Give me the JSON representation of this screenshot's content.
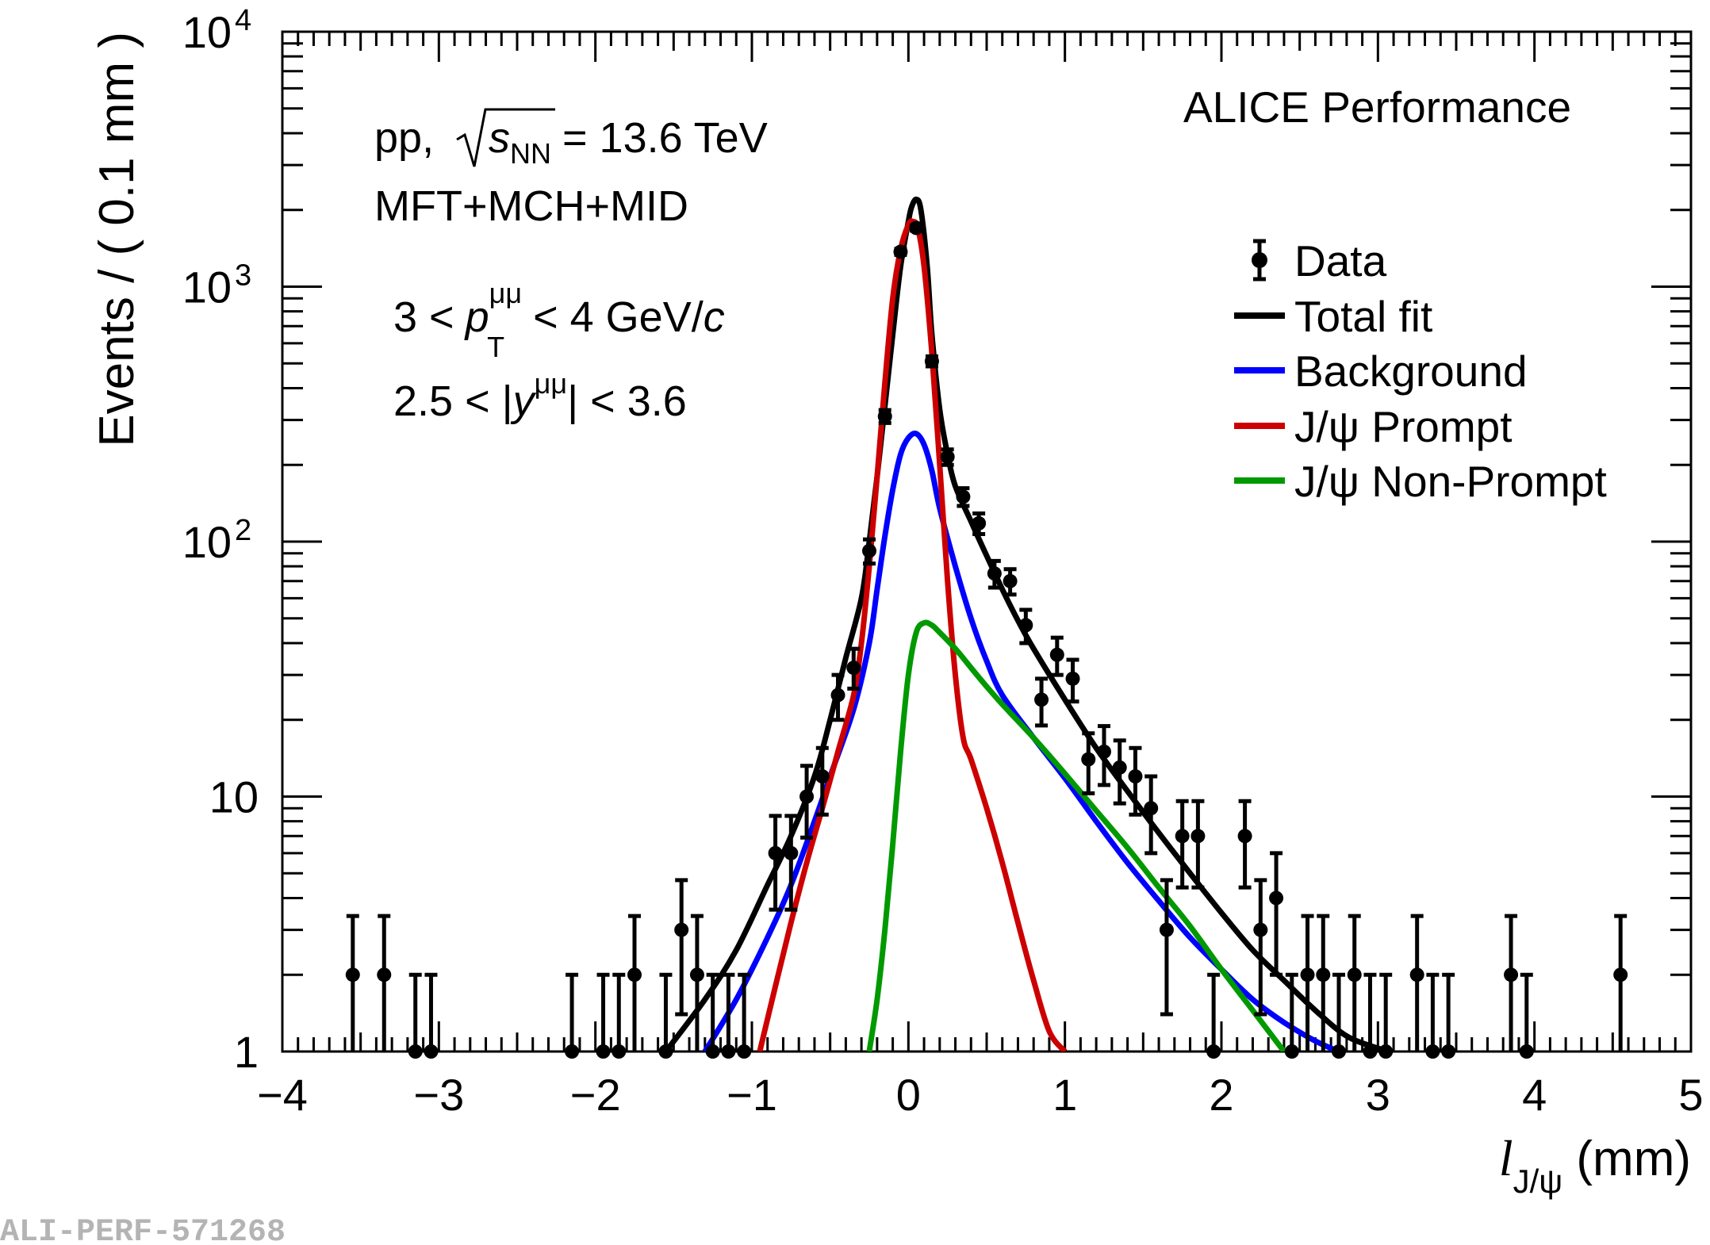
{
  "chart_data": {
    "type": "scatter",
    "title": "ALICE Performance",
    "xlabel_main": "l",
    "xlabel_sub": "J/ψ",
    "xlabel_unit": " (mm)",
    "ylabel": "Events / ( 0.1 mm )",
    "xlim": [
      -4,
      5
    ],
    "ylim": [
      1,
      10000
    ],
    "yscale": "log",
    "x_ticks": [
      "−4",
      "−3",
      "−2",
      "−1",
      "0",
      "1",
      "2",
      "3",
      "4",
      "5"
    ],
    "y_ticks": [
      {
        "value": 1,
        "base": "1",
        "exp": ""
      },
      {
        "value": 10,
        "base": "10",
        "exp": ""
      },
      {
        "value": 100,
        "base": "10",
        "exp": "2"
      },
      {
        "value": 1000,
        "base": "10",
        "exp": "3"
      },
      {
        "value": 10000,
        "base": "10",
        "exp": "4"
      }
    ],
    "annotations": {
      "system": "pp,",
      "energy_var": "s",
      "energy_sub": "NN",
      "energy_val": "= 13.6 TeV",
      "detectors": "MFT+MCH+MID",
      "pt_low": "3 <",
      "pt_var": "p",
      "pt_sub": "T",
      "pt_sup": "μμ",
      "pt_high": "< 4 GeV/",
      "pt_unit": "c",
      "y_low": "2.5 < |",
      "y_var": "y",
      "y_sup": "μμ",
      "y_high": "| < 3.6"
    },
    "legend_position": "top-right",
    "legend": [
      {
        "label": "Data",
        "type": "marker",
        "color": "#000000"
      },
      {
        "label": "Total fit",
        "type": "line",
        "color": "#000000"
      },
      {
        "label": "Background",
        "type": "line",
        "color": "#0000ff"
      },
      {
        "label": "J/ψ Prompt",
        "type": "line",
        "color": "#cc0000"
      },
      {
        "label": "J/ψ Non-Prompt",
        "type": "line",
        "color": "#009900"
      }
    ],
    "data_points": [
      {
        "x": -3.55,
        "y": 2,
        "lo": 1.0,
        "hi": 3.4
      },
      {
        "x": -3.35,
        "y": 2,
        "lo": 1.0,
        "hi": 3.4
      },
      {
        "x": -3.15,
        "y": 1,
        "lo": 1.0,
        "hi": 2.0
      },
      {
        "x": -3.05,
        "y": 1,
        "lo": 1.0,
        "hi": 2.0
      },
      {
        "x": -2.15,
        "y": 1,
        "lo": 1.0,
        "hi": 2.0
      },
      {
        "x": -1.95,
        "y": 1,
        "lo": 1.0,
        "hi": 2.0
      },
      {
        "x": -1.85,
        "y": 1,
        "lo": 1.0,
        "hi": 2.0
      },
      {
        "x": -1.75,
        "y": 2,
        "lo": 1.0,
        "hi": 3.4
      },
      {
        "x": -1.55,
        "y": 1,
        "lo": 1.0,
        "hi": 2.0
      },
      {
        "x": -1.45,
        "y": 3,
        "lo": 1.4,
        "hi": 4.7
      },
      {
        "x": -1.35,
        "y": 2,
        "lo": 1.0,
        "hi": 3.4
      },
      {
        "x": -1.25,
        "y": 1,
        "lo": 1.0,
        "hi": 2.0
      },
      {
        "x": -1.15,
        "y": 1,
        "lo": 1.0,
        "hi": 2.0
      },
      {
        "x": -1.05,
        "y": 1,
        "lo": 1.0,
        "hi": 2.0
      },
      {
        "x": -0.85,
        "y": 6,
        "lo": 3.6,
        "hi": 8.4
      },
      {
        "x": -0.75,
        "y": 6,
        "lo": 3.6,
        "hi": 8.4
      },
      {
        "x": -0.65,
        "y": 10,
        "lo": 6.9,
        "hi": 13.2
      },
      {
        "x": -0.55,
        "y": 12,
        "lo": 8.5,
        "hi": 15.5
      },
      {
        "x": -0.45,
        "y": 25,
        "lo": 20,
        "hi": 30
      },
      {
        "x": -0.35,
        "y": 32,
        "lo": 26.5,
        "hi": 38
      },
      {
        "x": -0.25,
        "y": 92,
        "lo": 82,
        "hi": 102
      },
      {
        "x": -0.15,
        "y": 310,
        "lo": 292,
        "hi": 328
      },
      {
        "x": -0.05,
        "y": 1370,
        "lo": 1333,
        "hi": 1407
      },
      {
        "x": 0.05,
        "y": 1700,
        "lo": 1659,
        "hi": 1741
      },
      {
        "x": 0.15,
        "y": 510,
        "lo": 487,
        "hi": 533
      },
      {
        "x": 0.25,
        "y": 215,
        "lo": 200,
        "hi": 230
      },
      {
        "x": 0.35,
        "y": 150,
        "lo": 138,
        "hi": 162
      },
      {
        "x": 0.45,
        "y": 118,
        "lo": 107,
        "hi": 129
      },
      {
        "x": 0.55,
        "y": 75,
        "lo": 66,
        "hi": 84
      },
      {
        "x": 0.65,
        "y": 70,
        "lo": 62,
        "hi": 78
      },
      {
        "x": 0.75,
        "y": 47,
        "lo": 40,
        "hi": 54
      },
      {
        "x": 0.85,
        "y": 24,
        "lo": 19,
        "hi": 29
      },
      {
        "x": 0.95,
        "y": 36,
        "lo": 30,
        "hi": 42
      },
      {
        "x": 1.05,
        "y": 29,
        "lo": 23.6,
        "hi": 34.4
      },
      {
        "x": 1.15,
        "y": 14,
        "lo": 10.3,
        "hi": 17.7
      },
      {
        "x": 1.25,
        "y": 15,
        "lo": 11.1,
        "hi": 18.9
      },
      {
        "x": 1.35,
        "y": 13,
        "lo": 9.4,
        "hi": 16.6
      },
      {
        "x": 1.45,
        "y": 12,
        "lo": 8.5,
        "hi": 15.5
      },
      {
        "x": 1.55,
        "y": 9,
        "lo": 6,
        "hi": 12
      },
      {
        "x": 1.65,
        "y": 3,
        "lo": 1.4,
        "hi": 4.7
      },
      {
        "x": 1.75,
        "y": 7,
        "lo": 4.4,
        "hi": 9.6
      },
      {
        "x": 1.85,
        "y": 7,
        "lo": 4.4,
        "hi": 9.6
      },
      {
        "x": 1.95,
        "y": 1,
        "lo": 1.0,
        "hi": 2.0
      },
      {
        "x": 2.15,
        "y": 7,
        "lo": 4.4,
        "hi": 9.6
      },
      {
        "x": 2.25,
        "y": 3,
        "lo": 1.4,
        "hi": 4.7
      },
      {
        "x": 2.35,
        "y": 4,
        "lo": 2.0,
        "hi": 6.0
      },
      {
        "x": 2.45,
        "y": 1,
        "lo": 1.0,
        "hi": 2.0
      },
      {
        "x": 2.55,
        "y": 2,
        "lo": 1.0,
        "hi": 3.4
      },
      {
        "x": 2.65,
        "y": 2,
        "lo": 1.0,
        "hi": 3.4
      },
      {
        "x": 2.75,
        "y": 1,
        "lo": 1.0,
        "hi": 2.0
      },
      {
        "x": 2.85,
        "y": 2,
        "lo": 1.0,
        "hi": 3.4
      },
      {
        "x": 2.95,
        "y": 1,
        "lo": 1.0,
        "hi": 2.0
      },
      {
        "x": 3.05,
        "y": 1,
        "lo": 1.0,
        "hi": 2.0
      },
      {
        "x": 3.25,
        "y": 2,
        "lo": 1.0,
        "hi": 3.4
      },
      {
        "x": 3.35,
        "y": 1,
        "lo": 1.0,
        "hi": 2.0
      },
      {
        "x": 3.45,
        "y": 1,
        "lo": 1.0,
        "hi": 2.0
      },
      {
        "x": 3.85,
        "y": 2,
        "lo": 1.0,
        "hi": 3.4
      },
      {
        "x": 3.95,
        "y": 1,
        "lo": 1.0,
        "hi": 2.0
      },
      {
        "x": 4.55,
        "y": 2,
        "lo": 1.0,
        "hi": 3.4
      }
    ],
    "series": [
      {
        "name": "Total fit",
        "color": "#000000",
        "x": [
          -1.55,
          -1.3,
          -1.1,
          -0.9,
          -0.75,
          -0.6,
          -0.5,
          -0.4,
          -0.3,
          -0.25,
          -0.2,
          -0.15,
          -0.1,
          -0.05,
          0.0,
          0.02,
          0.05,
          0.08,
          0.12,
          0.15,
          0.2,
          0.25,
          0.3,
          0.4,
          0.5,
          0.6,
          0.7,
          0.8,
          1.0,
          1.2,
          1.4,
          1.6,
          1.8,
          2.0,
          2.2,
          2.4,
          2.6,
          2.8,
          3.0,
          3.08
        ],
        "y": [
          1.0,
          1.6,
          2.5,
          4.5,
          7.0,
          12,
          20,
          35,
          60,
          100,
          180,
          340,
          650,
          1200,
          1800,
          2050,
          2200,
          2000,
          1200,
          650,
          330,
          220,
          165,
          120,
          88,
          65,
          49,
          38,
          24,
          15.5,
          10.5,
          7.2,
          5.0,
          3.5,
          2.5,
          1.9,
          1.45,
          1.15,
          1.03,
          1.0
        ]
      },
      {
        "name": "Background",
        "color": "#0000ff",
        "x": [
          -1.3,
          -1.1,
          -0.9,
          -0.75,
          -0.6,
          -0.5,
          -0.35,
          -0.25,
          -0.2,
          -0.15,
          -0.1,
          -0.05,
          0.0,
          0.05,
          0.1,
          0.15,
          0.2,
          0.3,
          0.4,
          0.5,
          0.6,
          0.8,
          1.0,
          1.2,
          1.4,
          1.6,
          1.8,
          2.0,
          2.2,
          2.4,
          2.6,
          2.75
        ],
        "y": [
          1.0,
          1.6,
          2.8,
          4.5,
          8,
          12,
          22,
          40,
          65,
          105,
          160,
          220,
          255,
          265,
          240,
          190,
          135,
          80,
          50,
          34,
          25,
          17,
          11.8,
          8.0,
          5.5,
          3.9,
          2.8,
          2.1,
          1.6,
          1.3,
          1.1,
          1.0
        ]
      },
      {
        "name": "J/ψ Prompt",
        "color": "#cc0000",
        "x": [
          -0.95,
          -0.85,
          -0.75,
          -0.65,
          -0.55,
          -0.45,
          -0.35,
          -0.3,
          -0.25,
          -0.2,
          -0.15,
          -0.1,
          -0.05,
          0.0,
          0.03,
          0.06,
          0.1,
          0.15,
          0.2,
          0.25,
          0.3,
          0.35,
          0.4,
          0.5,
          0.6,
          0.7,
          0.8,
          0.9,
          1.0
        ],
        "y": [
          1.0,
          1.8,
          3.2,
          5.5,
          9,
          15,
          25,
          40,
          80,
          180,
          420,
          900,
          1400,
          1750,
          1800,
          1700,
          1200,
          550,
          200,
          70,
          30,
          17,
          14,
          9,
          5.5,
          3.2,
          1.9,
          1.2,
          1.0
        ]
      },
      {
        "name": "J/ψ Non-Prompt",
        "color": "#009900",
        "x": [
          -0.25,
          -0.2,
          -0.15,
          -0.1,
          -0.05,
          0.0,
          0.05,
          0.1,
          0.15,
          0.2,
          0.3,
          0.4,
          0.5,
          0.6,
          0.8,
          1.0,
          1.2,
          1.4,
          1.6,
          1.8,
          2.0,
          2.2,
          2.4
        ],
        "y": [
          1.0,
          1.6,
          3.0,
          6.5,
          15,
          30,
          44,
          48,
          47,
          44,
          38,
          32,
          27,
          23,
          17,
          12.3,
          8.8,
          6.3,
          4.4,
          3.1,
          2.1,
          1.45,
          1.0
        ]
      }
    ]
  },
  "watermark": "ALI-PERF-571268"
}
